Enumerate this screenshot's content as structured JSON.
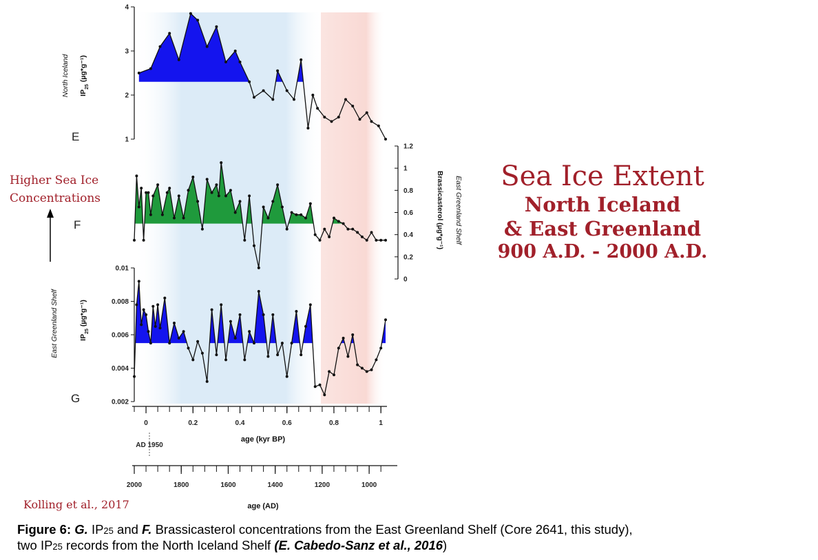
{
  "chart_data": [
    {
      "panel": "E",
      "type": "area",
      "ylabel_region": "North Iceland",
      "ylabel": "IP25 (µg*g⁻¹)",
      "yticks": [
        "1",
        "2",
        "3",
        "4"
      ],
      "ylim": [
        1,
        4
      ],
      "baseline": 2.3,
      "x": [
        -0.03,
        0.02,
        0.06,
        0.1,
        0.14,
        0.19,
        0.22,
        0.26,
        0.3,
        0.34,
        0.38,
        0.4,
        0.44,
        0.46,
        0.5,
        0.54,
        0.56,
        0.6,
        0.63,
        0.66,
        0.69,
        0.71,
        0.73,
        0.76,
        0.79,
        0.82,
        0.85,
        0.88,
        0.91,
        0.94,
        0.96,
        0.99,
        1.02
      ],
      "values": [
        2.5,
        2.6,
        3.1,
        3.4,
        2.8,
        3.85,
        3.7,
        3.1,
        3.55,
        2.75,
        3.0,
        2.75,
        2.3,
        1.95,
        2.1,
        1.9,
        2.55,
        2.1,
        1.9,
        2.8,
        1.25,
        2.0,
        1.7,
        1.5,
        1.4,
        1.5,
        1.9,
        1.75,
        1.45,
        1.6,
        1.4,
        1.3,
        1.0
      ]
    },
    {
      "panel": "F",
      "type": "area",
      "ylabel_region": "East Greenland Shelf",
      "ylabel": "Brassicasterol (µg*g⁻¹)",
      "yticks": [
        "0",
        "0.2",
        "0.4",
        "0.6",
        "0.8",
        "1",
        "1.2"
      ],
      "ylim": [
        0,
        1.2
      ],
      "baseline": 0.5,
      "x": [
        -0.05,
        -0.04,
        -0.03,
        -0.02,
        -0.01,
        0.0,
        0.01,
        0.02,
        0.03,
        0.05,
        0.07,
        0.09,
        0.1,
        0.12,
        0.14,
        0.16,
        0.18,
        0.2,
        0.22,
        0.24,
        0.26,
        0.28,
        0.3,
        0.31,
        0.32,
        0.34,
        0.36,
        0.38,
        0.4,
        0.42,
        0.44,
        0.46,
        0.48,
        0.5,
        0.52,
        0.54,
        0.56,
        0.58,
        0.6,
        0.62,
        0.64,
        0.66,
        0.68,
        0.7,
        0.72,
        0.74,
        0.76,
        0.78,
        0.8,
        0.82,
        0.84,
        0.86,
        0.88,
        0.9,
        0.92,
        0.94,
        0.96,
        0.98,
        1.0,
        1.02
      ],
      "values": [
        0.35,
        0.93,
        0.65,
        0.82,
        0.35,
        0.78,
        0.78,
        0.58,
        0.75,
        0.85,
        0.58,
        0.78,
        0.82,
        0.55,
        0.75,
        0.55,
        0.8,
        0.92,
        0.7,
        0.45,
        0.9,
        0.78,
        0.85,
        0.75,
        1.05,
        0.75,
        0.8,
        0.6,
        0.7,
        0.35,
        0.75,
        0.3,
        0.1,
        0.65,
        0.55,
        0.7,
        0.85,
        0.65,
        0.45,
        0.6,
        0.58,
        0.58,
        0.55,
        0.68,
        0.4,
        0.35,
        0.45,
        0.38,
        0.55,
        0.52,
        0.5,
        0.45,
        0.45,
        0.42,
        0.38,
        0.35,
        0.42,
        0.35,
        0.35,
        0.35
      ]
    },
    {
      "panel": "G",
      "type": "area",
      "ylabel_region": "East Greenland Shelf",
      "ylabel": "IP25 (µg*g⁻¹)",
      "yticks": [
        "0.002",
        "0.004",
        "0.006",
        "0.008",
        "0.01"
      ],
      "ylim": [
        0.002,
        0.01
      ],
      "baseline": 0.0055,
      "x": [
        -0.05,
        -0.04,
        -0.03,
        -0.02,
        -0.01,
        0.0,
        0.01,
        0.02,
        0.03,
        0.04,
        0.05,
        0.06,
        0.08,
        0.1,
        0.12,
        0.14,
        0.16,
        0.18,
        0.2,
        0.22,
        0.24,
        0.26,
        0.28,
        0.3,
        0.32,
        0.34,
        0.36,
        0.38,
        0.4,
        0.42,
        0.44,
        0.46,
        0.48,
        0.5,
        0.52,
        0.54,
        0.56,
        0.58,
        0.6,
        0.62,
        0.64,
        0.66,
        0.68,
        0.7,
        0.72,
        0.74,
        0.76,
        0.78,
        0.8,
        0.82,
        0.84,
        0.86,
        0.88,
        0.9,
        0.92,
        0.94,
        0.96,
        0.98,
        1.0,
        1.02
      ],
      "values": [
        0.0035,
        0.0078,
        0.0092,
        0.0066,
        0.0075,
        0.0072,
        0.0062,
        0.0055,
        0.0077,
        0.0065,
        0.0078,
        0.0064,
        0.0082,
        0.0055,
        0.0067,
        0.0058,
        0.0062,
        0.0052,
        0.0045,
        0.0056,
        0.0049,
        0.0032,
        0.0075,
        0.0048,
        0.0078,
        0.0045,
        0.0068,
        0.0058,
        0.0072,
        0.0045,
        0.0062,
        0.0055,
        0.0086,
        0.0072,
        0.0047,
        0.0072,
        0.0048,
        0.0055,
        0.0035,
        0.0055,
        0.0074,
        0.0048,
        0.0065,
        0.0078,
        0.0029,
        0.003,
        0.0024,
        0.0038,
        0.0036,
        0.0052,
        0.0058,
        0.0047,
        0.006,
        0.0042,
        0.004,
        0.0038,
        0.0039,
        0.0045,
        0.0052,
        0.0069
      ]
    }
  ],
  "axes": {
    "kyr": {
      "title": "age (kyr BP)",
      "ticks": [
        0,
        0.2,
        0.4,
        0.6,
        0.8,
        1
      ],
      "tick_labels": [
        "0",
        "0.2",
        "0.4",
        "0.6",
        "0.8",
        "1"
      ],
      "xlim": [
        -0.05,
        1.02
      ],
      "marker_label": "AD 1950"
    },
    "ad": {
      "title": "age (AD)",
      "ticks": [
        2000,
        1800,
        1600,
        1400,
        1200,
        1000
      ],
      "tick_labels": [
        "2000",
        "1800",
        "1600",
        "1400",
        "1200",
        "1000"
      ]
    }
  },
  "panel_letters": {
    "e": "E",
    "f": "F",
    "g": "G"
  },
  "ylabels": {
    "e_region": "North Iceland",
    "e_prefix": "IP",
    "e_sub": "25",
    "e_unit": " (µg*g⁻¹)",
    "f_region": "East Greenland Shelf",
    "f_name": "Brassicasterol (µg*g⁻¹)",
    "g_region": "East Greenland Shelf",
    "g_prefix": "IP",
    "g_sub": "25",
    "g_unit": " (µg*g⁻¹)"
  },
  "colors": {
    "blue_fill": "#1414ee",
    "green_fill": "#1f9a3c",
    "cold_band": "#dcebf7",
    "warm_band": "#f9d9d4",
    "accent_red": "#a1202a"
  },
  "overlay": {
    "title_line1": "Sea Ice Extent",
    "title_line2": "North Iceland",
    "title_line3": "& East Greenland",
    "title_line4": "900 A.D. - 2000 A.D.",
    "arrow_note_line1": "Higher Sea Ice",
    "arrow_note_line2": "Concentrations",
    "citation": "Kolling et al., 2017"
  },
  "caption": {
    "label": "Figure 6:",
    "g_letter": "G.",
    "ip_prefix": "IP",
    "ip_sub": "25",
    "text_1": " and ",
    "f_letter": "F.",
    "text_2": " Brassicasterol concentrations from the East Greenland Shelf (Core 2641, this study),",
    "text_3": "two ",
    "text_4": "  records from the North Iceland Shelf ",
    "ref": "(E. Cabedo-Sanz et al., 2016",
    "close": ")"
  }
}
